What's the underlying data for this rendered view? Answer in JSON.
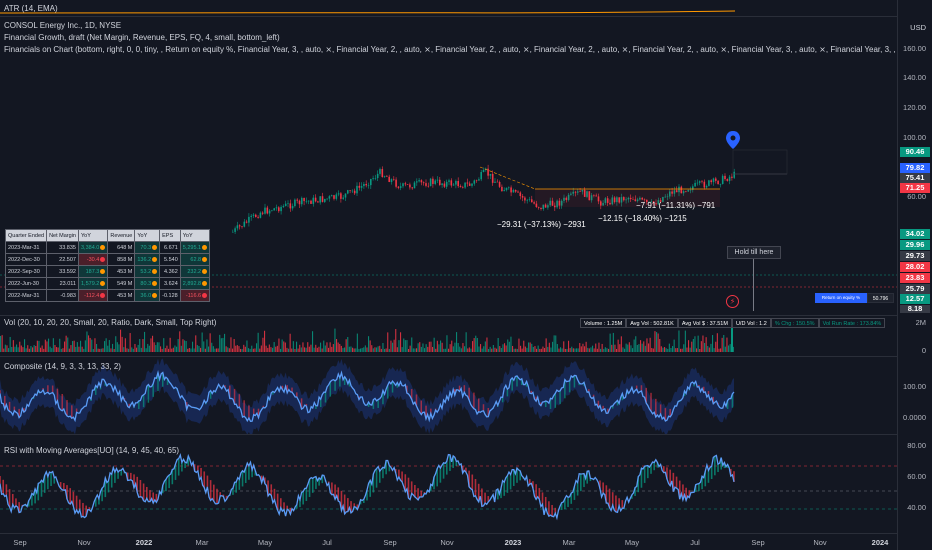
{
  "atr_label": "ATR (14, EMA)",
  "main": {
    "symbol_line": "CONSOL Energy Inc., 1D, NYSE",
    "indicator1": "Financial Growth, draft (Net Margin, Revenue, EPS, FQ, 4, small, bottom_left)",
    "indicator2": "Financials on Chart (bottom, right, 0, 0, tiny, ,     Return on equity %, Financial Year, 3, , auto, ⨯, Financial Year, 2, , auto, ⨯, Financial Year, 2, , auto, ⨯, Financial Year, 2, , auto, ⨯, Financial Year, 2, , auto, ⨯, Financial Year, 3, , auto, ⨯, Financial Year, 3, , auto, ⨯, Financial Year, 3, , auto, ⨯, Fin",
    "ann1": "−29.31 (−37.13%) −2931",
    "ann2": "−12.15 (−18.40%) −1215",
    "ann3": "−7.91 (−11.31%) −791",
    "hold_label": "Hold till here",
    "roe_label": "Return on equity %",
    "roe_value": "50.796",
    "currency": "USD"
  },
  "fin_table": {
    "headers": [
      "Quarter Ended",
      "Net Margin",
      "YoY",
      "Revenue",
      "YoY",
      "EPS",
      "YoY"
    ],
    "rows": [
      {
        "q": "2023-Mar-31",
        "nm": "33.835",
        "nmy": "3,384.0",
        "rev": "648 M",
        "revy": "70.3",
        "eps": "6.671",
        "epsy": "5,295.1"
      },
      {
        "q": "2022-Dec-30",
        "nm": "22.507",
        "nmy": "-30.4",
        "rev": "858 M",
        "revy": "136.2",
        "eps": "5.540",
        "epsy": "62.8"
      },
      {
        "q": "2022-Sep-30",
        "nm": "33.592",
        "nmy": "187.3",
        "rev": "453 M",
        "revy": "53.2",
        "eps": "4.362",
        "epsy": "232.2"
      },
      {
        "q": "2022-Jun-30",
        "nm": "23.011",
        "nmy": "1,579.2",
        "rev": "549 M",
        "revy": "80.3",
        "eps": "3.624",
        "epsy": "2,892.8"
      },
      {
        "q": "2022-Mar-31",
        "nm": "-0.983",
        "nmy": "-112.4",
        "rev": "453 M",
        "revy": "36.0",
        "eps": "-0.128",
        "epsy": "-116.6"
      }
    ]
  },
  "price_axis": [
    "160.00",
    "140.00",
    "120.00",
    "100.00",
    "80.00",
    "60.00"
  ],
  "price_badges": [
    {
      "text": "90.46",
      "color": "#089981"
    },
    {
      "text": "79.82",
      "color": "#2962ff"
    },
    {
      "text": "75.41",
      "color": "#363a45"
    },
    {
      "text": "71.25",
      "color": "#f23645"
    },
    {
      "text": "34.02",
      "color": "#089981"
    },
    {
      "text": "29.96",
      "color": "#089981"
    },
    {
      "text": "29.73",
      "color": "#363a45"
    },
    {
      "text": "28.02",
      "color": "#f23645"
    },
    {
      "text": "23.83",
      "color": "#f23645"
    },
    {
      "text": "25.79",
      "color": "#363a45"
    },
    {
      "text": "12.57",
      "color": "#089981"
    },
    {
      "text": "8.18",
      "color": "#363a45"
    }
  ],
  "volume": {
    "label": "Vol (20, 10, 20, 20, Small, 20, Ratio, Dark, Small, Top Right)",
    "stat_volume": "Volume : 1.25M",
    "stat_avg": "Avg Vol : 502.81K",
    "stat_sd": "Avg Vol $ : 37.51M",
    "stat_ud": "U/D Vol : 1.2",
    "stat_chg": "% Chg : 150.5%",
    "stat_runrate": "Vol Run Rate : 173.84%",
    "axis": [
      "2M",
      "0"
    ]
  },
  "composite": {
    "label": "Composite (14, 9, 3, 3, 13, 33, 2)",
    "axis": [
      "100.00",
      "0.0000"
    ]
  },
  "rsi": {
    "label": "RSI with Moving Averages[UO] (14, 9, 45, 40, 65)",
    "axis": [
      "80.00",
      "60.00",
      "40.00"
    ]
  },
  "x_axis": [
    {
      "label": "Sep",
      "bold": false
    },
    {
      "label": "Nov",
      "bold": false
    },
    {
      "label": "2022",
      "bold": true
    },
    {
      "label": "Mar",
      "bold": false
    },
    {
      "label": "May",
      "bold": false
    },
    {
      "label": "Jul",
      "bold": false
    },
    {
      "label": "Sep",
      "bold": false
    },
    {
      "label": "Nov",
      "bold": false
    },
    {
      "label": "2023",
      "bold": true
    },
    {
      "label": "Mar",
      "bold": false
    },
    {
      "label": "May",
      "bold": false
    },
    {
      "label": "Jul",
      "bold": false
    },
    {
      "label": "Sep",
      "bold": false
    },
    {
      "label": "Nov",
      "bold": false
    },
    {
      "label": "2024",
      "bold": true
    }
  ],
  "colors": {
    "bg": "#131722",
    "up": "#089981",
    "down": "#f23645",
    "blue": "#2962ff",
    "orange": "#ff9800"
  }
}
